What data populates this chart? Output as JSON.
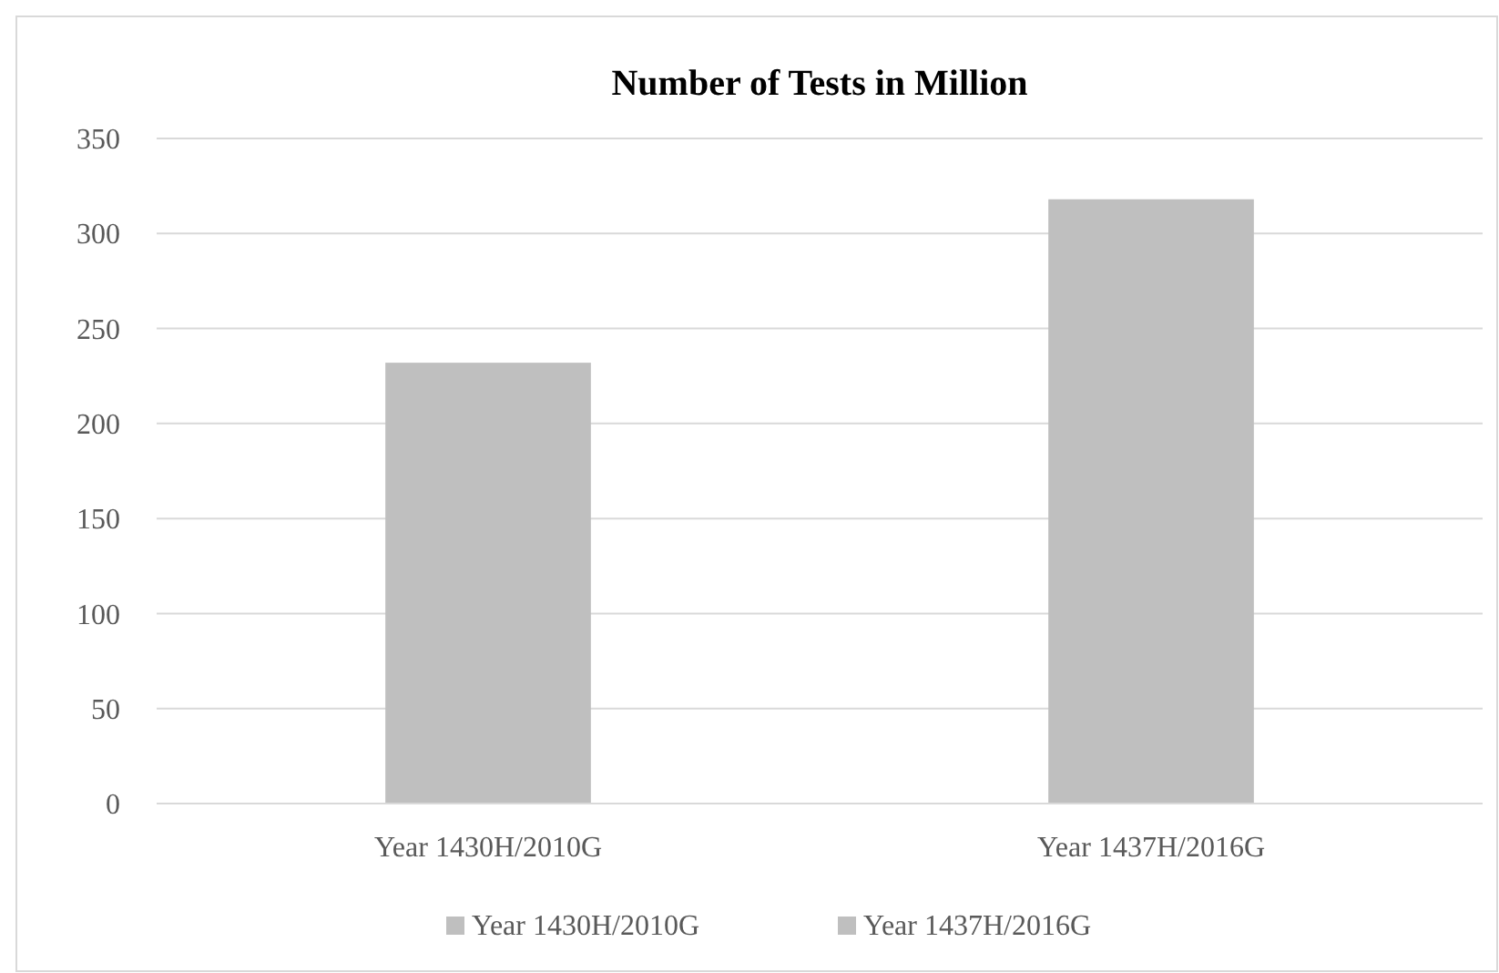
{
  "chart_data": {
    "type": "bar",
    "title": "Number of Tests in Million",
    "categories": [
      "Year 1430H/2010G",
      "Year 1437H/2016G"
    ],
    "series": [
      {
        "name": "Year 1430H/2010G",
        "color": "#bfbfbf",
        "values": [
          232,
          null
        ]
      },
      {
        "name": "Year 1437H/2016G",
        "color": "#bfbfbf",
        "values": [
          null,
          318
        ]
      }
    ],
    "ylim": [
      0,
      350
    ],
    "yticks": [
      0,
      50,
      100,
      150,
      200,
      250,
      300,
      350
    ],
    "grid": "y",
    "legend": "bottom"
  }
}
